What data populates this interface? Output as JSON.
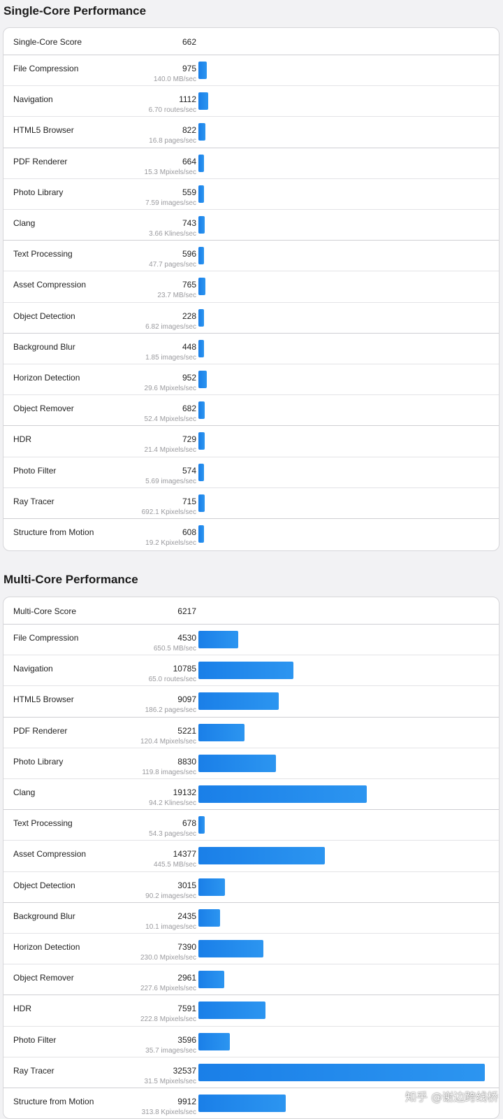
{
  "single": {
    "title": "Single-Core Performance",
    "score_label": "Single-Core Score",
    "score": "662",
    "rows": [
      {
        "name": "File Compression",
        "value": "975",
        "rate": "140.0 MB/sec"
      },
      {
        "name": "Navigation",
        "value": "1112",
        "rate": "6.70 routes/sec"
      },
      {
        "name": "HTML5 Browser",
        "value": "822",
        "rate": "16.8 pages/sec"
      },
      {
        "name": "PDF Renderer",
        "value": "664",
        "rate": "15.3 Mpixels/sec"
      },
      {
        "name": "Photo Library",
        "value": "559",
        "rate": "7.59 images/sec"
      },
      {
        "name": "Clang",
        "value": "743",
        "rate": "3.66 Klines/sec"
      },
      {
        "name": "Text Processing",
        "value": "596",
        "rate": "47.7 pages/sec"
      },
      {
        "name": "Asset Compression",
        "value": "765",
        "rate": "23.7 MB/sec"
      },
      {
        "name": "Object Detection",
        "value": "228",
        "rate": "6.82 images/sec"
      },
      {
        "name": "Background Blur",
        "value": "448",
        "rate": "1.85 images/sec"
      },
      {
        "name": "Horizon Detection",
        "value": "952",
        "rate": "29.6 Mpixels/sec"
      },
      {
        "name": "Object Remover",
        "value": "682",
        "rate": "52.4 Mpixels/sec"
      },
      {
        "name": "HDR",
        "value": "729",
        "rate": "21.4 Mpixels/sec"
      },
      {
        "name": "Photo Filter",
        "value": "574",
        "rate": "5.69 images/sec"
      },
      {
        "name": "Ray Tracer",
        "value": "715",
        "rate": "692.1 Kpixels/sec"
      },
      {
        "name": "Structure from Motion",
        "value": "608",
        "rate": "19.2 Kpixels/sec"
      }
    ]
  },
  "multi": {
    "title": "Multi-Core Performance",
    "score_label": "Multi-Core Score",
    "score": "6217",
    "rows": [
      {
        "name": "File Compression",
        "value": "4530",
        "rate": "650.5 MB/sec"
      },
      {
        "name": "Navigation",
        "value": "10785",
        "rate": "65.0 routes/sec"
      },
      {
        "name": "HTML5 Browser",
        "value": "9097",
        "rate": "186.2 pages/sec"
      },
      {
        "name": "PDF Renderer",
        "value": "5221",
        "rate": "120.4 Mpixels/sec"
      },
      {
        "name": "Photo Library",
        "value": "8830",
        "rate": "119.8 images/sec"
      },
      {
        "name": "Clang",
        "value": "19132",
        "rate": "94.2 Klines/sec"
      },
      {
        "name": "Text Processing",
        "value": "678",
        "rate": "54.3 pages/sec"
      },
      {
        "name": "Asset Compression",
        "value": "14377",
        "rate": "445.5 MB/sec"
      },
      {
        "name": "Object Detection",
        "value": "3015",
        "rate": "90.2 images/sec"
      },
      {
        "name": "Background Blur",
        "value": "2435",
        "rate": "10.1 images/sec"
      },
      {
        "name": "Horizon Detection",
        "value": "7390",
        "rate": "230.0 Mpixels/sec"
      },
      {
        "name": "Object Remover",
        "value": "2961",
        "rate": "227.6 Mpixels/sec"
      },
      {
        "name": "HDR",
        "value": "7591",
        "rate": "222.8 Mpixels/sec"
      },
      {
        "name": "Photo Filter",
        "value": "3596",
        "rate": "35.7 images/sec"
      },
      {
        "name": "Ray Tracer",
        "value": "32537",
        "rate": "31.5 Mpixels/sec"
      },
      {
        "name": "Structure from Motion",
        "value": "9912",
        "rate": "313.8 Kpixels/sec"
      }
    ]
  },
  "bar_color": "#1a7fe8",
  "watermark": "知乎 @谢边跨线桥"
}
